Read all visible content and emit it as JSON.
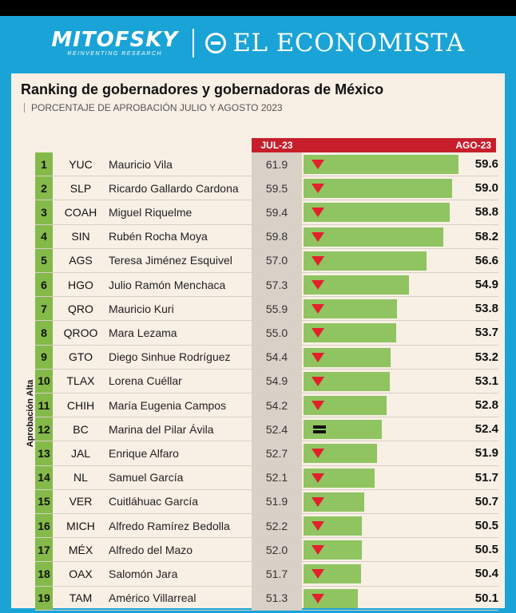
{
  "header": {
    "brand_left": "MITOFSKY",
    "brand_left_tagline": "REINVENTING RESEARCH",
    "brand_right": "EL ECONOMISTA"
  },
  "chart_data": {
    "type": "bar",
    "title": "Ranking de gobernadores y gobernadoras de México",
    "subtitle": "PORCENTAJE DE APROBACIÓN JULIO Y AGOSTO 2023",
    "ylabel": "Aprobación Alta",
    "col_prev": "JUL-23",
    "col_curr": "AGO-23",
    "x_range": [
      0,
      59.6
    ],
    "rows": [
      {
        "rank": "1",
        "state": "YUC",
        "name": "Mauricio Vila",
        "jul": 61.9,
        "ago": 59.6,
        "trend": "down"
      },
      {
        "rank": "2",
        "state": "SLP",
        "name": "Ricardo Gallardo Cardona",
        "jul": 59.5,
        "ago": 59.0,
        "trend": "down"
      },
      {
        "rank": "3",
        "state": "COAH",
        "name": "Miguel Riquelme",
        "jul": 59.4,
        "ago": 58.8,
        "trend": "down"
      },
      {
        "rank": "4",
        "state": "SIN",
        "name": "Rubén Rocha Moya",
        "jul": 59.8,
        "ago": 58.2,
        "trend": "down"
      },
      {
        "rank": "5",
        "state": "AGS",
        "name": "Teresa Jiménez Esquivel",
        "jul": 57.0,
        "ago": 56.6,
        "trend": "down"
      },
      {
        "rank": "6",
        "state": "HGO",
        "name": "Julio Ramón Menchaca",
        "jul": 57.3,
        "ago": 54.9,
        "trend": "down"
      },
      {
        "rank": "7",
        "state": "QRO",
        "name": "Mauricio Kuri",
        "jul": 55.9,
        "ago": 53.8,
        "trend": "down"
      },
      {
        "rank": "8",
        "state": "QROO",
        "name": "Mara Lezama",
        "jul": 55.0,
        "ago": 53.7,
        "trend": "down"
      },
      {
        "rank": "9",
        "state": "GTO",
        "name": "Diego Sinhue Rodríguez",
        "jul": 54.4,
        "ago": 53.2,
        "trend": "down"
      },
      {
        "rank": "10",
        "state": "TLAX",
        "name": "Lorena Cuéllar",
        "jul": 54.9,
        "ago": 53.1,
        "trend": "down"
      },
      {
        "rank": "11",
        "state": "CHIH",
        "name": "María Eugenia Campos",
        "jul": 54.2,
        "ago": 52.8,
        "trend": "down"
      },
      {
        "rank": "12",
        "state": "BC",
        "name": "Marina del Pilar Ávila",
        "jul": 52.4,
        "ago": 52.4,
        "trend": "equal"
      },
      {
        "rank": "13",
        "state": "JAL",
        "name": "Enrique Alfaro",
        "jul": 52.7,
        "ago": 51.9,
        "trend": "down"
      },
      {
        "rank": "14",
        "state": "NL",
        "name": "Samuel García",
        "jul": 52.1,
        "ago": 51.7,
        "trend": "down"
      },
      {
        "rank": "15",
        "state": "VER",
        "name": "Cuitláhuac García",
        "jul": 51.9,
        "ago": 50.7,
        "trend": "down"
      },
      {
        "rank": "16",
        "state": "MICH",
        "name": "Alfredo Ramírez Bedolla",
        "jul": 52.2,
        "ago": 50.5,
        "trend": "down"
      },
      {
        "rank": "17",
        "state": "MÉX",
        "name": "Alfredo del Mazo",
        "jul": 52.0,
        "ago": 50.5,
        "trend": "down"
      },
      {
        "rank": "18",
        "state": "OAX",
        "name": "Salomón Jara",
        "jul": 51.7,
        "ago": 50.4,
        "trend": "down"
      },
      {
        "rank": "19",
        "state": "TAM",
        "name": "Américo Villarreal",
        "jul": 51.3,
        "ago": 50.1,
        "trend": "down"
      }
    ]
  }
}
